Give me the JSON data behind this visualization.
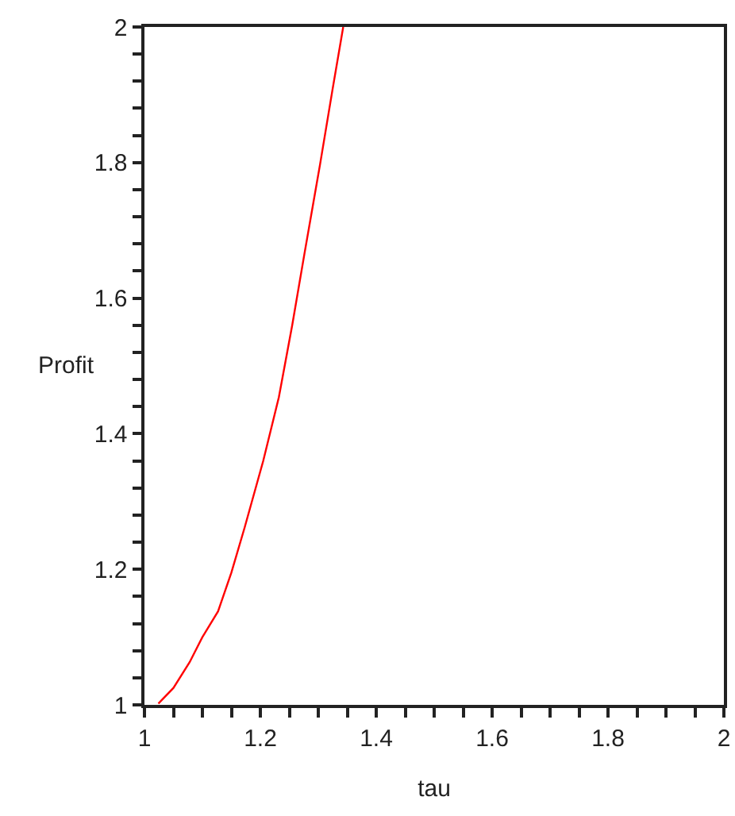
{
  "chart_data": {
    "type": "line",
    "xlabel": "tau",
    "ylabel": "Profit",
    "x": [
      1.024,
      1.05,
      1.078,
      1.1,
      1.127,
      1.15,
      1.173,
      1.205,
      1.232,
      1.255,
      1.276,
      1.303,
      1.325,
      1.343
    ],
    "series": [
      {
        "color": "#ff0000",
        "values": [
          1.002,
          1.025,
          1.063,
          1.1,
          1.138,
          1.195,
          1.262,
          1.36,
          1.454,
          1.56,
          1.665,
          1.797,
          1.91,
          2.0
        ]
      }
    ],
    "xlim": [
      1,
      2
    ],
    "ylim": [
      1,
      2
    ],
    "xticks": [
      1,
      {
        "value": 1.05,
        "label": null
      },
      {
        "value": 1.1,
        "label": null
      },
      {
        "value": 1.15,
        "label": null
      },
      1.2,
      {
        "value": 1.25,
        "label": null
      },
      {
        "value": 1.3,
        "label": null
      },
      {
        "value": 1.35,
        "label": null
      },
      1.4,
      {
        "value": 1.45,
        "label": null
      },
      {
        "value": 1.5,
        "label": null
      },
      {
        "value": 1.55,
        "label": null
      },
      1.6,
      {
        "value": 1.65,
        "label": null
      },
      {
        "value": 1.7,
        "label": null
      },
      {
        "value": 1.75,
        "label": null
      },
      1.8,
      {
        "value": 1.85,
        "label": null
      },
      {
        "value": 1.9,
        "label": null
      },
      {
        "value": 1.95,
        "label": null
      },
      2
    ],
    "yticks": [
      1,
      {
        "value": 1.04,
        "label": null
      },
      {
        "value": 1.08,
        "label": null
      },
      {
        "value": 1.12,
        "label": null
      },
      {
        "value": 1.16,
        "label": null
      },
      1.2,
      {
        "value": 1.24,
        "label": null
      },
      {
        "value": 1.28,
        "label": null
      },
      {
        "value": 1.32,
        "label": null
      },
      {
        "value": 1.36,
        "label": null
      },
      1.4,
      {
        "value": 1.44,
        "label": null
      },
      {
        "value": 1.48,
        "label": null
      },
      {
        "value": 1.52,
        "label": null
      },
      {
        "value": 1.56,
        "label": null
      },
      1.6,
      {
        "value": 1.64,
        "label": null
      },
      {
        "value": 1.68,
        "label": null
      },
      {
        "value": 1.72,
        "label": null
      },
      {
        "value": 1.76,
        "label": null
      },
      1.8,
      {
        "value": 1.84,
        "label": null
      },
      {
        "value": 1.88,
        "label": null
      },
      {
        "value": 1.92,
        "label": null
      },
      {
        "value": 1.96,
        "label": null
      },
      2
    ],
    "legend": false,
    "marker": "none",
    "line_style": "solid"
  }
}
